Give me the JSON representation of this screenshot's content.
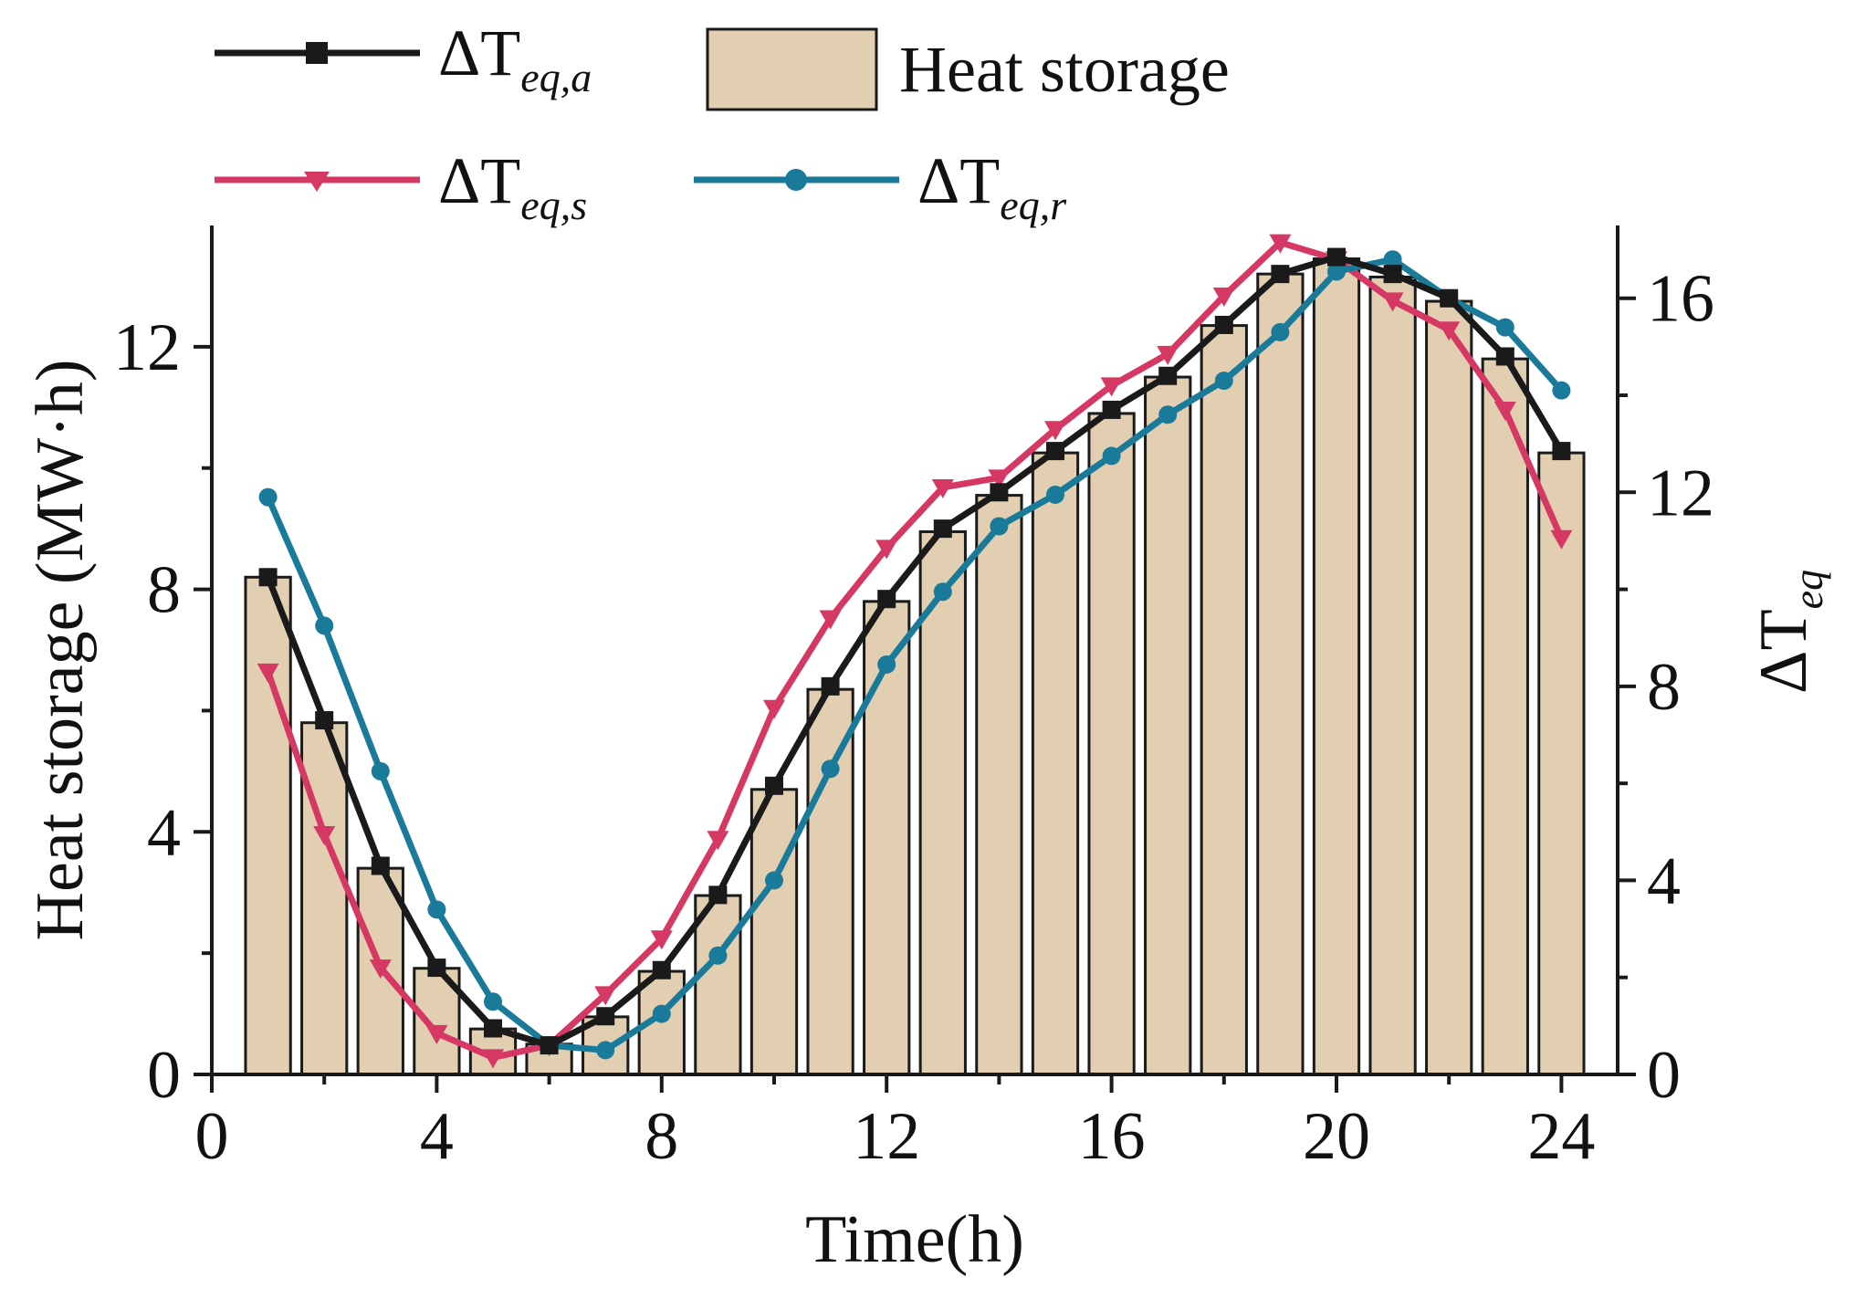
{
  "chart_data": {
    "type": "bar+line",
    "xlabel": "Time(h)",
    "ylabel_left": "Heat storage (MW·h)",
    "ylabel_right": {
      "prefix": "ΔT",
      "subscript": "eq"
    },
    "xlim": [
      0,
      25
    ],
    "ylim_left": [
      0,
      14
    ],
    "ylim_right": [
      0,
      17.5
    ],
    "x_ticks": [
      0,
      4,
      8,
      12,
      16,
      20,
      24
    ],
    "y_left_ticks": [
      0,
      4,
      8,
      12
    ],
    "y_right_ticks": [
      0,
      4,
      8,
      12,
      16
    ],
    "x": [
      1,
      2,
      3,
      4,
      5,
      6,
      7,
      8,
      9,
      10,
      11,
      12,
      13,
      14,
      15,
      16,
      17,
      18,
      19,
      20,
      21,
      22,
      23,
      24
    ],
    "bars": {
      "name": "Heat storage",
      "axis": "left",
      "color": "#e2cfb2",
      "values": [
        8.2,
        5.8,
        3.4,
        1.75,
        0.75,
        0.5,
        0.95,
        1.7,
        2.95,
        4.7,
        6.35,
        7.8,
        8.95,
        9.55,
        10.25,
        10.9,
        11.5,
        12.35,
        13.2,
        13.45,
        13.15,
        12.75,
        11.8,
        10.25
      ]
    },
    "series": [
      {
        "name": "ΔT_eq,a",
        "label_main": "ΔT",
        "label_sub": "eq,a",
        "axis": "right",
        "marker": "square",
        "color": "#1a1a1a",
        "values": [
          10.25,
          7.3,
          4.3,
          2.2,
          0.95,
          0.6,
          1.2,
          2.15,
          3.7,
          5.95,
          8.0,
          9.8,
          11.25,
          12.0,
          12.85,
          13.7,
          14.4,
          15.45,
          16.5,
          16.85,
          16.5,
          16.0,
          14.8,
          12.85
        ]
      },
      {
        "name": "ΔT_eq,s",
        "label_main": "ΔT",
        "label_sub": "eq,s",
        "axis": "right",
        "marker": "triangle-down",
        "color": "#d63864",
        "values": [
          8.3,
          4.95,
          2.2,
          0.85,
          0.35,
          0.6,
          1.65,
          2.8,
          4.85,
          7.55,
          9.4,
          10.85,
          12.1,
          12.3,
          13.3,
          14.2,
          14.85,
          16.05,
          17.15,
          16.8,
          15.95,
          15.35,
          13.7,
          11.05
        ]
      },
      {
        "name": "ΔT_eq,r",
        "label_main": "ΔT",
        "label_sub": "eq,r",
        "axis": "right",
        "marker": "circle",
        "color": "#1a7a9a",
        "values": [
          11.9,
          9.25,
          6.25,
          3.4,
          1.5,
          0.6,
          0.5,
          1.25,
          2.45,
          4.0,
          6.3,
          8.45,
          9.95,
          11.3,
          11.95,
          12.75,
          13.6,
          14.3,
          15.3,
          16.55,
          16.8,
          16.0,
          15.4,
          14.1
        ]
      }
    ],
    "legend": {
      "position": "top",
      "entries": [
        "ΔT_eq,a",
        "Heat storage",
        "ΔT_eq,s",
        "ΔT_eq,r"
      ]
    }
  }
}
